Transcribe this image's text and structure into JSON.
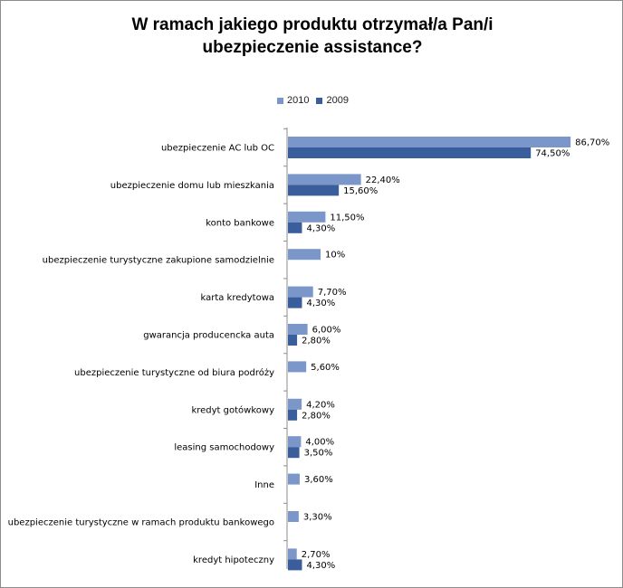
{
  "title_line1": "W ramach jakiego produktu otrzymał/a Pan/i",
  "title_line2": "ubezpieczenie assistance?",
  "colors": {
    "s2010": "#7b96c8",
    "s2009": "#3a5d9c"
  },
  "chart_data": {
    "type": "bar",
    "orientation": "horizontal",
    "categories": [
      "ubezpieczenie AC lub OC",
      "ubezpieczenie domu lub mieszkania",
      "konto bankowe",
      "ubezpieczenie turystyczne zakupione samodzielnie",
      "karta kredytowa",
      "gwarancja producencka auta",
      "ubezpieczenie turystyczne od biura podróży",
      "kredyt gotówkowy",
      "leasing samochodowy",
      "Inne",
      "ubezpieczenie turystyczne w ramach produktu bankowego",
      "kredyt hipoteczny"
    ],
    "series": [
      {
        "name": "2010",
        "values": [
          86.7,
          22.4,
          11.5,
          10,
          7.7,
          6.0,
          5.6,
          4.2,
          4.0,
          3.6,
          3.3,
          2.7
        ],
        "labels": [
          "86,70%",
          "22,40%",
          "11,50%",
          "10%",
          "7,70%",
          "6,00%",
          "5,60%",
          "4,20%",
          "4,00%",
          "3,60%",
          "3,30%",
          "2,70%"
        ]
      },
      {
        "name": "2009",
        "values": [
          74.5,
          15.6,
          4.3,
          null,
          4.3,
          2.8,
          null,
          2.8,
          3.5,
          null,
          null,
          4.3
        ],
        "labels": [
          "74,50%",
          "15,60%",
          "4,30%",
          "",
          "4,30%",
          "2,80%",
          "",
          "2,80%",
          "3,50%",
          "",
          "",
          "4,30%"
        ]
      }
    ],
    "xlim": [
      0,
      100
    ],
    "legend_position": "top",
    "grid": false
  }
}
